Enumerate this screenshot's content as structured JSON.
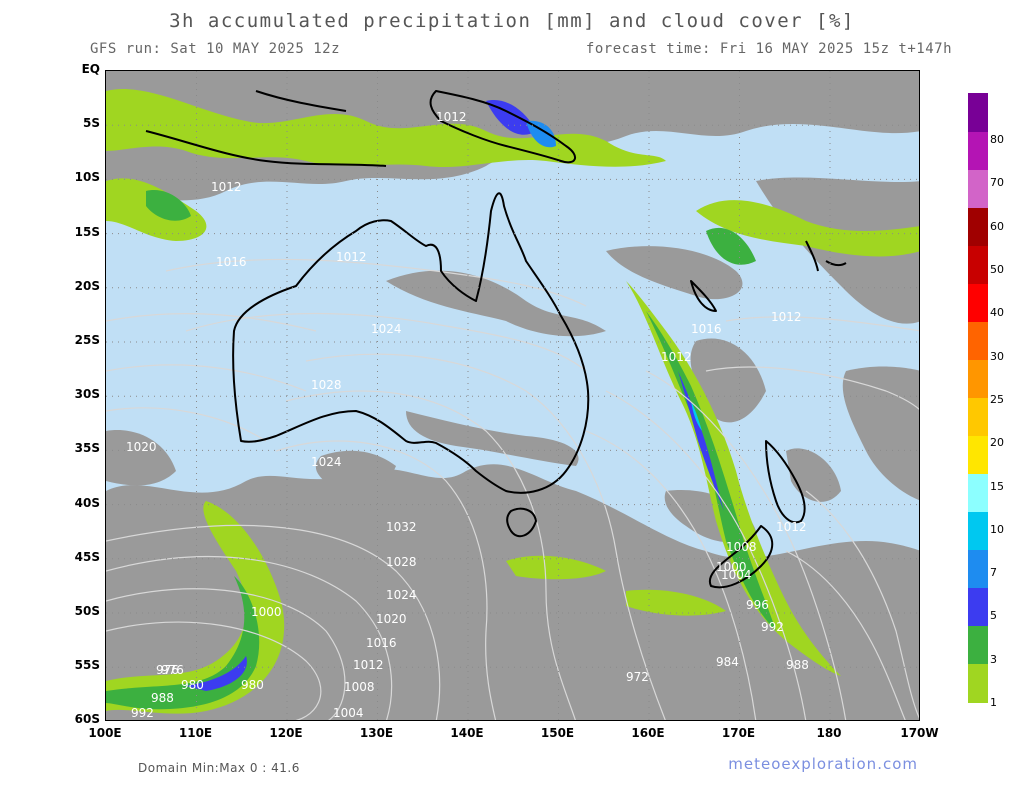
{
  "header": {
    "title": "3h accumulated precipitation [mm] and cloud cover [%]",
    "run": "GFS run: Sat 10 MAY 2025 12z",
    "forecast": "forecast time: Fri 16 MAY 2025 15z  t+147h"
  },
  "axes": {
    "lat_labels": [
      "EQ",
      "5S",
      "10S",
      "15S",
      "20S",
      "25S",
      "30S",
      "35S",
      "40S",
      "45S",
      "50S",
      "55S",
      "60S"
    ],
    "lon_labels": [
      "100E",
      "110E",
      "120E",
      "130E",
      "140E",
      "150E",
      "160E",
      "170E",
      "180",
      "170W"
    ]
  },
  "legend": {
    "labels": [
      "1",
      "3",
      "5",
      "7",
      "10",
      "15",
      "20",
      "25",
      "30",
      "40",
      "50",
      "60",
      "70",
      "80"
    ],
    "colors": [
      "#a0d621",
      "#3cb040",
      "#3c3cf0",
      "#1e8cf0",
      "#00c8f0",
      "#8cffff",
      "#ffe600",
      "#ffc800",
      "#ff9600",
      "#ff6400",
      "#ff0000",
      "#c80000",
      "#a00000",
      "#d264c8",
      "#b414b4",
      "#780096"
    ]
  },
  "map": {
    "ocean_color": "#c0dff5",
    "cloud_color": "#9a9a9a",
    "isobar_labels": [
      "1012",
      "1012",
      "1012",
      "1016",
      "1020",
      "1024",
      "1028",
      "1024",
      "1032",
      "1028",
      "1024",
      "1020",
      "1016",
      "1012",
      "1008",
      "1004",
      "1016",
      "1012",
      "1012",
      "1012",
      "1008",
      "1004",
      "1000",
      "996",
      "992",
      "988",
      "984",
      "980",
      "976",
      "972",
      "1000",
      "980",
      "976",
      "988",
      "992"
    ]
  },
  "footer": {
    "domain_minmax": "Domain Min:Max 0 : 41.6",
    "brand": "meteoexploration.com"
  }
}
